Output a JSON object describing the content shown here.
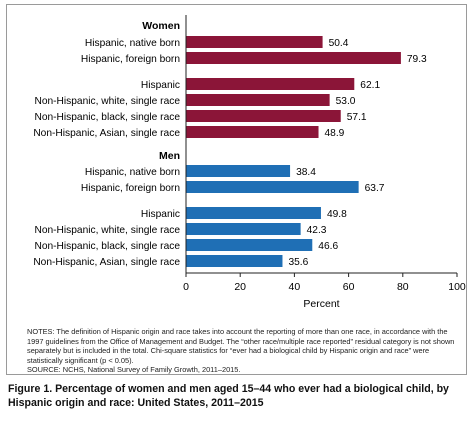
{
  "chart_data": {
    "type": "bar",
    "orientation": "horizontal",
    "xlabel": "Percent",
    "xlim": [
      0,
      100
    ],
    "xticks": [
      0,
      20,
      40,
      60,
      80,
      100
    ],
    "grid": false,
    "groups": [
      {
        "name": "Women",
        "color": "#8b1538",
        "bars": [
          {
            "label": "Hispanic, native born",
            "value": 50.4
          },
          {
            "label": "Hispanic, foreign born",
            "value": 79.3
          },
          {
            "label": "Hispanic",
            "value": 62.1
          },
          {
            "label": "Non-Hispanic, white, single race",
            "value": 53.0
          },
          {
            "label": "Non-Hispanic, black, single race",
            "value": 57.1
          },
          {
            "label": "Non-Hispanic, Asian, single race",
            "value": 48.9
          }
        ]
      },
      {
        "name": "Men",
        "color": "#1f6fb5",
        "bars": [
          {
            "label": "Hispanic, native born",
            "value": 38.4
          },
          {
            "label": "Hispanic, foreign born",
            "value": 63.7
          },
          {
            "label": "Hispanic",
            "value": 49.8
          },
          {
            "label": "Non-Hispanic, white, single race",
            "value": 42.3
          },
          {
            "label": "Non-Hispanic, black, single race",
            "value": 46.6
          },
          {
            "label": "Non-Hispanic, Asian, single race",
            "value": 35.6
          }
        ]
      }
    ]
  },
  "notes": {
    "text": "NOTES: The definition of Hispanic origin and race takes into account the reporting of more than one race, in accordance with the 1997 guidelines from the Office of Management and Budget. The “other race/multiple race reported” residual category is not shown separately but is included in the total. Chi-square statistics for “ever had a biological child by Hispanic origin and race” were statistically significant (p < 0.05).",
    "source": "SOURCE: NCHS, National Survey of Family Growth, 2011–2015."
  },
  "caption": "Figure 1. Percentage of women and men aged 15–44 who ever had a biological child, by Hispanic origin and race: United States, 2011–2015"
}
